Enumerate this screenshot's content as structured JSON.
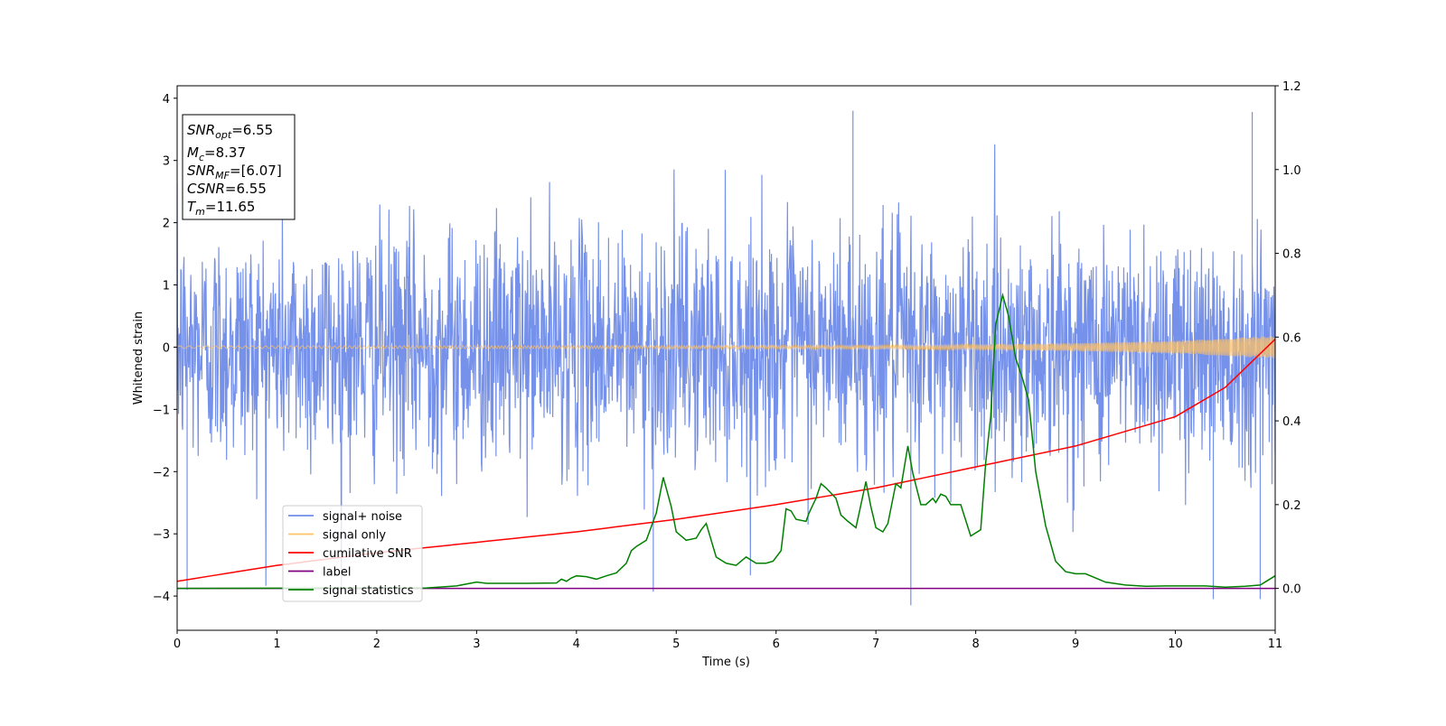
{
  "chart_data": {
    "type": "line",
    "xlabel": "Time (s)",
    "ylabel": "Whitened strain",
    "xlim": [
      0,
      11
    ],
    "ylim_left": [
      -4.55,
      4.2
    ],
    "ylim_right": [
      -0.1,
      1.2
    ],
    "x_ticks": [
      "0",
      "1",
      "2",
      "3",
      "4",
      "5",
      "6",
      "7",
      "8",
      "9",
      "10",
      "11"
    ],
    "y_ticks_left": [
      "−4",
      "−3",
      "−2",
      "−1",
      "0",
      "1",
      "2",
      "3",
      "4"
    ],
    "y_ticks_right": [
      "0.0",
      "0.2",
      "0.4",
      "0.6",
      "0.8",
      "1.0",
      "1.2"
    ],
    "grid": false,
    "annotation_box": {
      "lines": [
        {
          "base": "SNR",
          "sub": "opt",
          "value": "=6.55"
        },
        {
          "base": "M",
          "sub": "c",
          "value": "=8.37"
        },
        {
          "base": "SNR",
          "sub": "MF",
          "value": "=[6.07]"
        },
        {
          "base": "CSNR",
          "sub": "",
          "value": "=6.55"
        },
        {
          "base": "T",
          "sub": "m",
          "value": "=11.65"
        }
      ]
    },
    "legend": {
      "placement": "lower-left",
      "entries": [
        {
          "name": "signal+ noise",
          "color": "#6f8be8"
        },
        {
          "name": "signal only",
          "color": "#ffc266"
        },
        {
          "name": "cumilative SNR",
          "color": "#ff0000"
        },
        {
          "name": "label",
          "color": "#800080"
        },
        {
          "name": "signal statistics",
          "color": "#008000"
        }
      ]
    },
    "series": [
      {
        "name": "signal+ noise",
        "axis": "left",
        "color": "#6f8be8",
        "description_stats": {
          "mean": 0.0,
          "std": 0.95,
          "min": -4.15,
          "max": 3.8
        },
        "notable_spikes": [
          [
            0.1,
            -3.9
          ],
          [
            4.77,
            -3.93
          ],
          [
            6.77,
            3.8
          ],
          [
            7.35,
            -4.15
          ],
          [
            10.77,
            3.78
          ],
          [
            10.38,
            -4.05
          ],
          [
            10.85,
            -4.05
          ]
        ]
      },
      {
        "name": "signal only",
        "axis": "left",
        "color": "#ffc266",
        "envelope": {
          "x": [
            0,
            5,
            7,
            8,
            9,
            10,
            11
          ],
          "amplitude": [
            0.02,
            0.025,
            0.03,
            0.04,
            0.06,
            0.1,
            0.18
          ]
        }
      },
      {
        "name": "cumilative SNR",
        "axis": "right",
        "color": "#ff0000",
        "x": [
          0,
          1,
          2,
          3,
          4,
          5,
          6,
          7,
          8,
          9,
          10,
          10.5,
          11
        ],
        "values": [
          0.017,
          0.055,
          0.085,
          0.11,
          0.135,
          0.165,
          0.2,
          0.24,
          0.29,
          0.34,
          0.41,
          0.48,
          0.595
        ]
      },
      {
        "name": "label",
        "axis": "right",
        "color": "#800080",
        "x": [
          0,
          11
        ],
        "values": [
          0.0,
          0.0
        ]
      },
      {
        "name": "signal statistics",
        "axis": "right",
        "color": "#008000",
        "x": [
          0,
          2.5,
          2.8,
          3.0,
          3.1,
          3.5,
          3.8,
          3.85,
          3.9,
          3.95,
          4.0,
          4.1,
          4.2,
          4.3,
          4.4,
          4.5,
          4.55,
          4.6,
          4.7,
          4.8,
          4.87,
          4.95,
          5.0,
          5.1,
          5.2,
          5.25,
          5.3,
          5.4,
          5.5,
          5.6,
          5.7,
          5.8,
          5.9,
          5.97,
          6.05,
          6.1,
          6.15,
          6.2,
          6.3,
          6.33,
          6.4,
          6.45,
          6.5,
          6.6,
          6.65,
          6.72,
          6.8,
          6.9,
          6.95,
          7.0,
          7.07,
          7.12,
          7.2,
          7.25,
          7.32,
          7.37,
          7.45,
          7.5,
          7.57,
          7.6,
          7.65,
          7.7,
          7.75,
          7.85,
          7.95,
          8.05,
          8.1,
          8.15,
          8.2,
          8.27,
          8.33,
          8.4,
          8.47,
          8.53,
          8.6,
          8.7,
          8.8,
          8.9,
          9.0,
          9.1,
          9.3,
          9.5,
          9.7,
          9.9,
          10.3,
          10.5,
          10.7,
          10.85,
          11.0
        ],
        "values": [
          0.0,
          0.001,
          0.006,
          0.015,
          0.012,
          0.012,
          0.013,
          0.022,
          0.017,
          0.025,
          0.03,
          0.028,
          0.022,
          0.03,
          0.037,
          0.06,
          0.09,
          0.1,
          0.115,
          0.18,
          0.265,
          0.195,
          0.135,
          0.115,
          0.12,
          0.14,
          0.155,
          0.075,
          0.06,
          0.055,
          0.075,
          0.06,
          0.06,
          0.065,
          0.09,
          0.19,
          0.185,
          0.165,
          0.16,
          0.18,
          0.215,
          0.25,
          0.24,
          0.215,
          0.175,
          0.16,
          0.145,
          0.255,
          0.195,
          0.145,
          0.135,
          0.155,
          0.25,
          0.24,
          0.34,
          0.275,
          0.2,
          0.2,
          0.215,
          0.205,
          0.225,
          0.22,
          0.2,
          0.2,
          0.125,
          0.14,
          0.3,
          0.41,
          0.63,
          0.7,
          0.65,
          0.55,
          0.5,
          0.45,
          0.28,
          0.15,
          0.065,
          0.04,
          0.035,
          0.035,
          0.015,
          0.008,
          0.005,
          0.006,
          0.006,
          0.003,
          0.005,
          0.008,
          0.03
        ]
      }
    ]
  }
}
